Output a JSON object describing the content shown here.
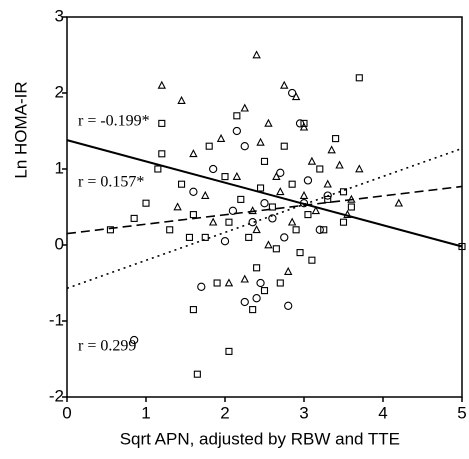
{
  "chart_data": {
    "type": "scatter",
    "x_label": "Sqrt APN, adjusted by RBW and TTE",
    "y_label": "Ln HOMA-IR",
    "xlim": [
      0,
      5
    ],
    "xticks": [
      0,
      1,
      2,
      3,
      4,
      5
    ],
    "ylim": [
      -2,
      3
    ],
    "yticks": [
      -2,
      -1,
      0,
      1,
      2,
      3
    ],
    "color": "#000000",
    "series": [
      {
        "marker": "square",
        "x": [
          1.65,
          2.05,
          1.6,
          1.3,
          0.55,
          0.85,
          1.0,
          1.15,
          1.2,
          1.2,
          1.45,
          1.6,
          1.75,
          1.9,
          2.0,
          2.2,
          2.3,
          2.4,
          2.5,
          2.6,
          2.7,
          2.75,
          2.85,
          2.9,
          3.0,
          3.05,
          3.1,
          3.2,
          3.3,
          3.4,
          3.5,
          3.6,
          3.7,
          2.35,
          2.5,
          1.8,
          2.15,
          2.65,
          2.95,
          3.25,
          3.5,
          1.55,
          2.05,
          2.45,
          5.0
        ],
        "values": [
          -1.7,
          -1.4,
          -0.85,
          0.2,
          0.2,
          0.35,
          0.55,
          1.0,
          1.2,
          1.6,
          0.8,
          0.4,
          0.1,
          -0.5,
          0.9,
          0.6,
          0.1,
          -0.3,
          1.1,
          0.5,
          -0.5,
          1.3,
          0.8,
          0.2,
          1.6,
          0.4,
          -0.2,
          1.0,
          0.6,
          1.4,
          0.7,
          0.5,
          2.2,
          -0.85,
          -0.6,
          1.3,
          1.7,
          -0.05,
          -0.1,
          0.2,
          0.3,
          0.1,
          0.3,
          0.75,
          -0.02
        ]
      },
      {
        "marker": "triangle",
        "x": [
          1.2,
          1.45,
          2.4,
          2.75,
          2.9,
          2.25,
          1.95,
          2.55,
          3.0,
          1.6,
          1.75,
          1.85,
          2.15,
          2.35,
          2.55,
          2.65,
          2.85,
          3.1,
          3.3,
          3.45,
          3.55,
          3.6,
          3.7,
          4.2,
          2.05,
          2.25,
          2.8,
          2.4,
          3.35,
          3.0,
          1.4,
          2.7,
          3.15,
          2.45
        ],
        "values": [
          2.1,
          1.9,
          2.5,
          2.1,
          1.95,
          1.8,
          1.4,
          1.6,
          1.55,
          1.2,
          0.65,
          0.3,
          0.9,
          0.45,
          0.0,
          0.9,
          0.3,
          1.1,
          0.8,
          1.05,
          0.4,
          0.6,
          1.0,
          0.55,
          -0.5,
          -0.45,
          -0.35,
          0.2,
          1.25,
          0.65,
          0.5,
          0.7,
          0.45,
          1.35
        ]
      },
      {
        "marker": "circle",
        "x": [
          0.85,
          2.25,
          2.4,
          2.45,
          2.8,
          1.7,
          2.15,
          2.25,
          2.5,
          2.6,
          2.7,
          2.85,
          2.95,
          3.0,
          3.05,
          1.85,
          2.1,
          1.6,
          3.2,
          2.75,
          3.3,
          2.0,
          2.35
        ],
        "values": [
          -1.25,
          -0.75,
          -0.7,
          -0.5,
          -0.8,
          -0.55,
          1.5,
          1.3,
          0.55,
          0.35,
          0.95,
          2.0,
          1.6,
          0.55,
          0.85,
          1.0,
          0.45,
          0.7,
          0.2,
          0.1,
          0.65,
          0.05,
          0.3
        ]
      }
    ],
    "fits": [
      {
        "style": "solid",
        "x": [
          0,
          5
        ],
        "values": [
          1.38,
          -0.02
        ],
        "label": "r = -0.199*"
      },
      {
        "style": "dashed",
        "x": [
          0,
          5
        ],
        "values": [
          0.15,
          0.77
        ],
        "label": "r = 0.157*"
      },
      {
        "style": "dotted",
        "x": [
          0,
          5
        ],
        "values": [
          -0.57,
          1.27
        ],
        "label": "r = 0.299"
      }
    ]
  }
}
